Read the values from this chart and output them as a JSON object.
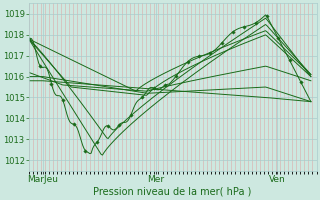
{
  "xlabel": "Pression niveau de la mer( hPa )",
  "bg_color": "#cde8e0",
  "plot_bg_color": "#cde8e0",
  "grid_major_color": "#aacccc",
  "grid_minor_color": "#ddaaaa",
  "line_color": "#1a6b1a",
  "ylim": [
    1011.5,
    1019.5
  ],
  "yticks": [
    1012,
    1013,
    1014,
    1015,
    1016,
    1017,
    1018,
    1019
  ],
  "xtick_labels": [
    "MarJeu",
    "Mer",
    "Ven"
  ],
  "xtick_positions": [
    0.05,
    0.45,
    0.88
  ]
}
